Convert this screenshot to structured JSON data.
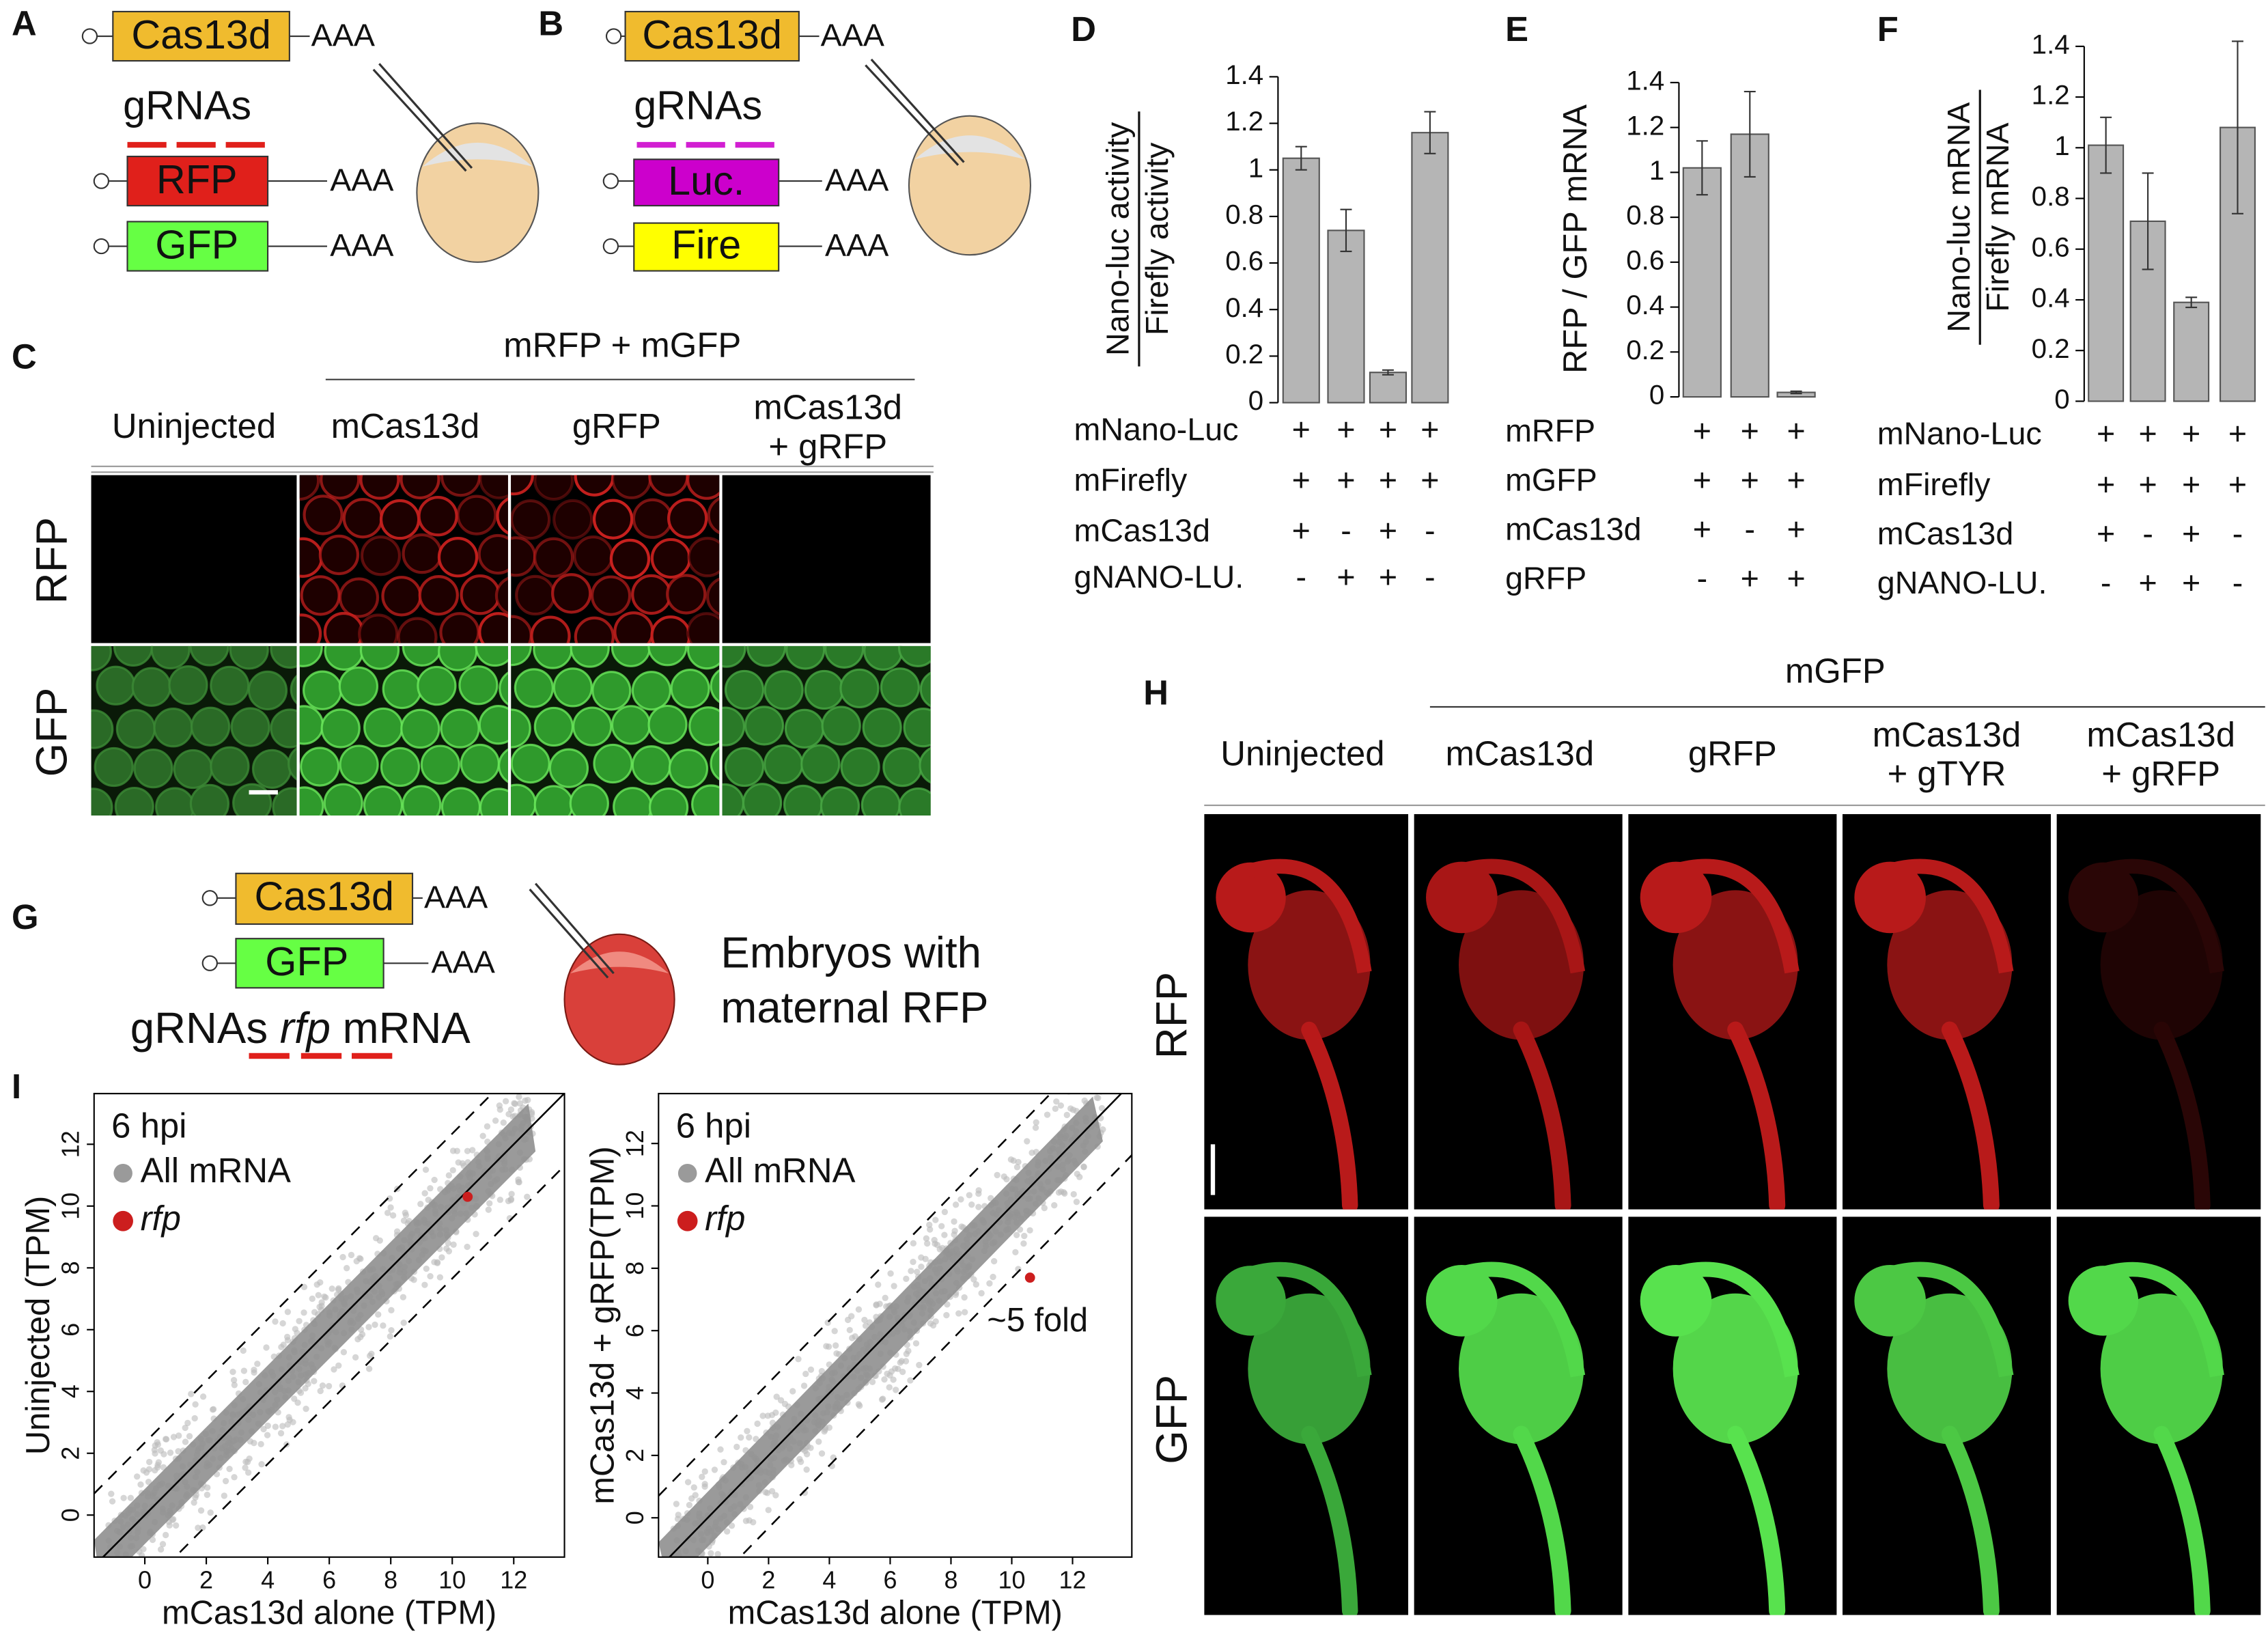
{
  "panel_labels": [
    "A",
    "B",
    "C",
    "D",
    "E",
    "F",
    "G",
    "H",
    "I"
  ],
  "panel_a": {
    "cas": "Cas13d",
    "polya": "AAA",
    "grnas": "gRNAs",
    "target": "RFP",
    "control": "GFP"
  },
  "panel_b": {
    "cas": "Cas13d",
    "polya": "AAA",
    "grnas": "gRNAs",
    "target": "Luc.",
    "control": "Fire"
  },
  "panel_c": {
    "header": "mRFP + mGFP",
    "columns": [
      "Uninjected",
      "mCas13d",
      "gRFP",
      [
        "mCas13d",
        "+ gRFP"
      ]
    ],
    "rows": [
      "RFP",
      "GFP"
    ]
  },
  "panel_g": {
    "cas": "Cas13d",
    "gfp": "GFP",
    "polya": "AAA",
    "grna_words": [
      "gRNAs",
      "rfp",
      "mRNA"
    ],
    "caption": [
      "Embryos with",
      "maternal RFP"
    ]
  },
  "panel_h": {
    "header": "mGFP",
    "columns": [
      "Uninjected",
      "mCas13d",
      "gRFP",
      [
        "mCas13d",
        "+ gTYR"
      ],
      [
        "mCas13d",
        "+ gRFP"
      ]
    ],
    "rows": [
      "RFP",
      "GFP"
    ]
  },
  "chart_data": [
    {
      "type": "bar",
      "ylabel_numerator": "Nano-luc activity",
      "ylabel_denominator": "Firefly activity",
      "values": [
        1.05,
        0.74,
        0.13,
        1.16
      ],
      "errors": [
        0.05,
        0.09,
        0.01,
        0.09
      ],
      "color": "#b5b5b5",
      "ylim": [
        0,
        1.4
      ],
      "yticks": [
        0,
        0.2,
        0.4,
        0.6,
        0.8,
        1,
        1.2,
        1.4
      ],
      "conditions": [
        {
          "label": "mNano-Luc",
          "marks": [
            "+",
            "+",
            "+",
            "+"
          ]
        },
        {
          "label": "mFirefly",
          "marks": [
            "+",
            "+",
            "+",
            "+"
          ]
        },
        {
          "label": "mCas13d",
          "marks": [
            "+",
            "-",
            "+",
            "-"
          ]
        },
        {
          "label": "gNANO-LU.",
          "marks": [
            "-",
            "+",
            "+",
            "-"
          ]
        }
      ]
    },
    {
      "type": "bar",
      "ylabel": "RFP / GFP mRNA",
      "values": [
        1.02,
        1.17,
        0.02
      ],
      "errors": [
        0.12,
        0.19,
        0.005
      ],
      "color": "#b5b5b5",
      "ylim": [
        0,
        1.4
      ],
      "yticks": [
        0,
        0.2,
        0.4,
        0.6,
        0.8,
        1,
        1.2,
        1.4
      ],
      "conditions": [
        {
          "label": "mRFP",
          "marks": [
            "+",
            "+",
            "+"
          ]
        },
        {
          "label": "mGFP",
          "marks": [
            "+",
            "+",
            "+"
          ]
        },
        {
          "label": "mCas13d",
          "marks": [
            "+",
            "-",
            "+"
          ]
        },
        {
          "label": "gRFP",
          "marks": [
            "-",
            "+",
            "+"
          ]
        }
      ]
    },
    {
      "type": "bar",
      "ylabel_numerator": "Nano-luc mRNA",
      "ylabel_denominator": "Firefly mRNA",
      "values": [
        1.01,
        0.71,
        0.39,
        1.08
      ],
      "errors": [
        0.11,
        0.19,
        0.02,
        0.34
      ],
      "color": "#b5b5b5",
      "ylim": [
        0,
        1.4
      ],
      "yticks": [
        0,
        0.2,
        0.4,
        0.6,
        0.8,
        1,
        1.2,
        1.4
      ],
      "conditions": [
        {
          "label": "mNano-Luc",
          "marks": [
            "+",
            "+",
            "+",
            "+"
          ]
        },
        {
          "label": "mFirefly",
          "marks": [
            "+",
            "+",
            "+",
            "+"
          ]
        },
        {
          "label": "mCas13d",
          "marks": [
            "+",
            "-",
            "+",
            "-"
          ]
        },
        {
          "label": "gNANO-LU.",
          "marks": [
            "-",
            "+",
            "+",
            "-"
          ]
        }
      ]
    },
    {
      "type": "scatter",
      "note": "6 hpi",
      "xlabel": "mCas13d alone (TPM)",
      "ylabel": "Uninjected (TPM)",
      "xlim": [
        -1.65,
        13.65
      ],
      "ylim": [
        -1.36,
        13.64
      ],
      "xticks": [
        0,
        2,
        4,
        6,
        8,
        10,
        12
      ],
      "yticks": [
        0,
        2,
        4,
        6,
        8,
        10,
        12
      ],
      "series": [
        {
          "name": "All mRNA",
          "color": "#9a9a9a"
        },
        {
          "name": "rfp",
          "color": "#cc1e1e",
          "x": [
            10.5
          ],
          "y": [
            10.3
          ]
        }
      ]
    },
    {
      "type": "scatter",
      "note": "6 hpi",
      "xlabel": "mCas13d alone (TPM)",
      "ylabel": "mCas13d + gRFP(TPM)",
      "annotation": "~5 fold",
      "xlim": [
        -1.62,
        13.95
      ],
      "ylim": [
        -1.26,
        13.6
      ],
      "xticks": [
        0,
        2,
        4,
        6,
        8,
        10,
        12
      ],
      "yticks": [
        0,
        2,
        4,
        6,
        8,
        10,
        12
      ],
      "series": [
        {
          "name": "All mRNA",
          "color": "#9a9a9a"
        },
        {
          "name": "rfp",
          "color": "#cc1e1e",
          "x": [
            10.6
          ],
          "y": [
            7.7
          ]
        }
      ]
    }
  ]
}
